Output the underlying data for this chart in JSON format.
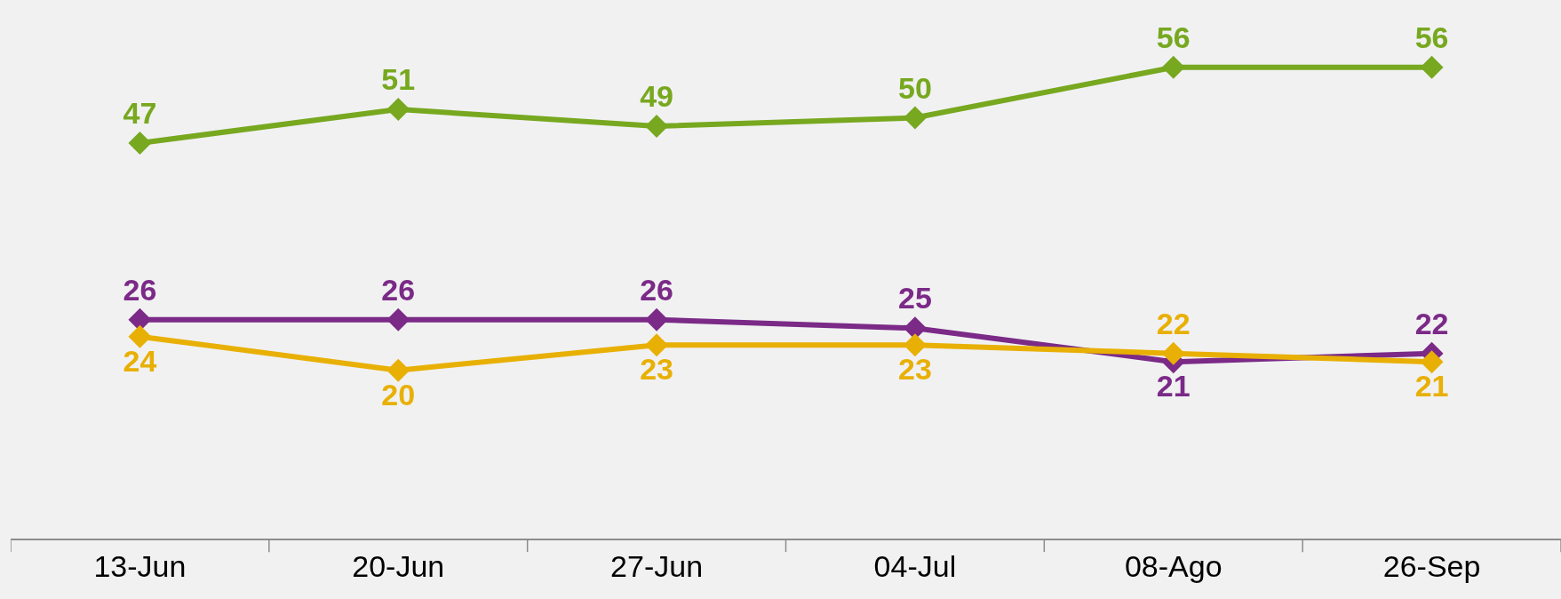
{
  "chart_data": {
    "type": "line",
    "categories": [
      "13-Jun",
      "20-Jun",
      "27-Jun",
      "04-Jul",
      "08-Ago",
      "26-Sep"
    ],
    "series": [
      {
        "color": "#77a81f",
        "values": [
          47,
          51,
          49,
          50,
          56,
          56
        ]
      },
      {
        "color": "#7b2a87",
        "values": [
          26,
          26,
          26,
          25,
          21,
          22
        ]
      },
      {
        "color": "#e8b004",
        "values": [
          24,
          20,
          23,
          23,
          22,
          21
        ]
      }
    ],
    "ylim": [
      0,
      64
    ],
    "tick_labels": "x",
    "data_labels": true,
    "marker": "diamond",
    "line_style": "solid",
    "grid": false,
    "legend": false
  }
}
